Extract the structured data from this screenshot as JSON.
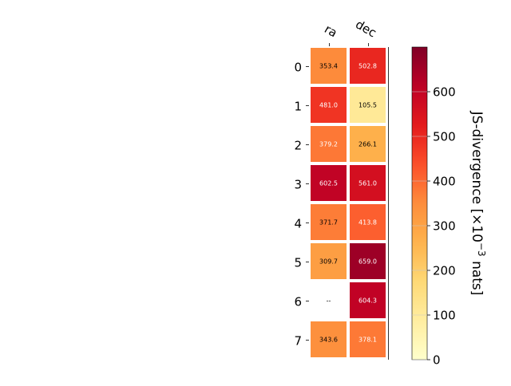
{
  "chart_data": {
    "type": "heatmap",
    "columns": [
      "ra",
      "dec"
    ],
    "rows": [
      "0",
      "1",
      "2",
      "3",
      "4",
      "5",
      "6",
      "7"
    ],
    "values": [
      [
        353.4,
        502.8
      ],
      [
        481.0,
        105.5
      ],
      [
        379.2,
        266.1
      ],
      [
        602.5,
        561.0
      ],
      [
        371.7,
        413.8
      ],
      [
        309.7,
        659.0
      ],
      [
        null,
        604.3
      ],
      [
        343.6,
        378.1
      ]
    ],
    "cell_labels": [
      [
        "353.4",
        "502.8"
      ],
      [
        "481.0",
        "105.5"
      ],
      [
        "379.2",
        "266.1"
      ],
      [
        "602.5",
        "561.0"
      ],
      [
        "371.7",
        "413.8"
      ],
      [
        "309.7",
        "659.0"
      ],
      [
        "--",
        "604.3"
      ],
      [
        "343.6",
        "378.1"
      ]
    ],
    "colorbar": {
      "label_main": "JS-divergence [×10",
      "label_exp": "−3",
      "label_unit": " nats]",
      "range": [
        0,
        700
      ],
      "ticks": [
        "0",
        "100",
        "200",
        "300",
        "400",
        "500",
        "600"
      ],
      "tick_values": [
        0,
        100,
        200,
        300,
        400,
        500,
        600
      ],
      "colormap": "YlOrRd"
    }
  }
}
